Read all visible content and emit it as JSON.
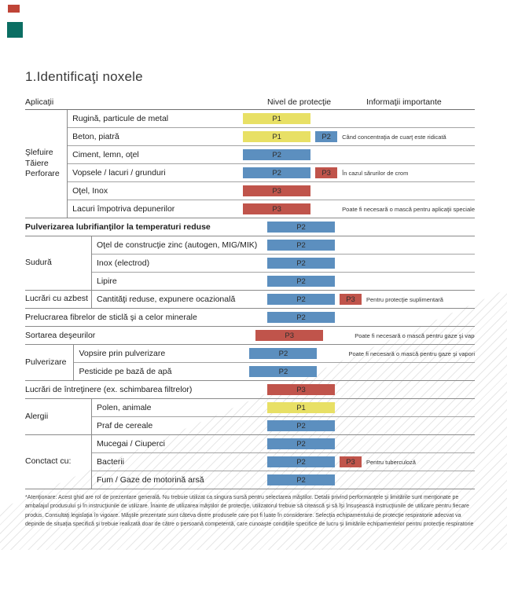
{
  "page": {
    "title": "1.Identificaţi noxele"
  },
  "decorations": {
    "corner_red": "#bf4437",
    "corner_teal": "#0b6e63"
  },
  "table": {
    "headers": {
      "applications": "Aplicaţii",
      "protection": "Nivel de protecţie",
      "info": "Informaţii importante"
    },
    "levels": {
      "P1": "#e8e065",
      "P2": "#5c8fbf",
      "P3": "#c0544b"
    },
    "sections": [
      {
        "type": "group",
        "group": "Şlefuire\nTăiere\nPerforare",
        "rows": [
          {
            "label": "Rugină, particule de metal",
            "level": "P1"
          },
          {
            "label": "Beton, piatră",
            "level": "P1",
            "extra": "P2",
            "info": "Când concentraţia de cuarţ este ridicată"
          },
          {
            "label": "Ciment, lemn, oţel",
            "level": "P2"
          },
          {
            "label": "Vopsele / lacuri / grunduri",
            "level": "P2",
            "extra": "P3",
            "info": "În cazul sărurilor de crom"
          },
          {
            "label": "Oţel, Inox",
            "level": "P3"
          },
          {
            "label": "Lacuri împotriva depunerilor",
            "level": "P3",
            "info": "Poate fi necesară o mască pentru aplicaţii speciale"
          }
        ]
      },
      {
        "type": "wide",
        "row": {
          "label": "Pulverizarea lubrifianţilor la temperaturi reduse",
          "level": "P2",
          "bold": true
        }
      },
      {
        "type": "group",
        "group": "Sudură",
        "rows": [
          {
            "label": "Oţel de construcţie zinc (autogen, MIG/MIK)",
            "level": "P2"
          },
          {
            "label": "Inox (electrod)",
            "level": "P2"
          },
          {
            "label": "Lipire",
            "level": "P2"
          }
        ]
      },
      {
        "type": "group",
        "group": "Lucrări cu azbest",
        "rows": [
          {
            "label": "Cantităţi reduse, expunere ocazională",
            "level": "P2",
            "extra": "P3",
            "info": "Pentru protecţie suplimentară"
          }
        ]
      },
      {
        "type": "wide",
        "row": {
          "label": "Prelucrarea fibrelor de sticlă şi a celor minerale",
          "level": "P2"
        }
      },
      {
        "type": "wide",
        "row": {
          "label": "Sortarea deşeurilor",
          "level": "P3",
          "info": "Poate fi necesară o mască pentru gaze şi vapori"
        }
      },
      {
        "type": "group",
        "group": "Pulverizare",
        "rows": [
          {
            "label": "Vopsire prin pulverizare",
            "level": "P2",
            "info": "Poate fi necesară o mască pentru gaze şi vapori"
          },
          {
            "label": "Pesticide pe bază de apă",
            "level": "P2"
          }
        ]
      },
      {
        "type": "wide",
        "row": {
          "label": "Lucrări de întreţinere (ex. schimbarea filtrelor)",
          "level": "P3"
        }
      },
      {
        "type": "group",
        "group": "Alergii",
        "rows": [
          {
            "label": "Polen, animale",
            "level": "P1"
          },
          {
            "label": "Praf de cereale",
            "level": "P2"
          }
        ]
      },
      {
        "type": "group",
        "group": "Conctact cu:",
        "rows": [
          {
            "label": "Mucegai / Ciuperci",
            "level": "P2"
          },
          {
            "label": "Bacterii",
            "level": "P2",
            "extra": "P3",
            "info": "Pentru tuberculoză"
          },
          {
            "label": "Fum / Gaze de motorină arsă",
            "level": "P2"
          }
        ]
      }
    ]
  },
  "footnote": "*Atenţionare: Acest ghid are rol de prezentare generală. Nu trebuie utilizat ca singura sursă pentru selectarea măştilor. Detalii privind performanţele şi limitările sunt menţionate pe ambalajul produsului şi în instrucţiunile de utilizare. Înainte de utilizarea măştilor de protecţie, utilizatorul trebuie să citească şi să îşi însuşească instrucţiunile de utilizare pentru fiecare produs. Consultaţi legislaţia în vigoare. Măştile prezentate sunt câteva dintre produsele care pot fi luate în considerare. Selecţia echipamentului de protecţie respiratorie adecvat va depinde de situaţia specifică şi trebuie realizată doar de către o persoană competentă, care cunoaşte condiţiile specifice de lucru şi limitările echipamentelor pentru protecţie respiratorie"
}
